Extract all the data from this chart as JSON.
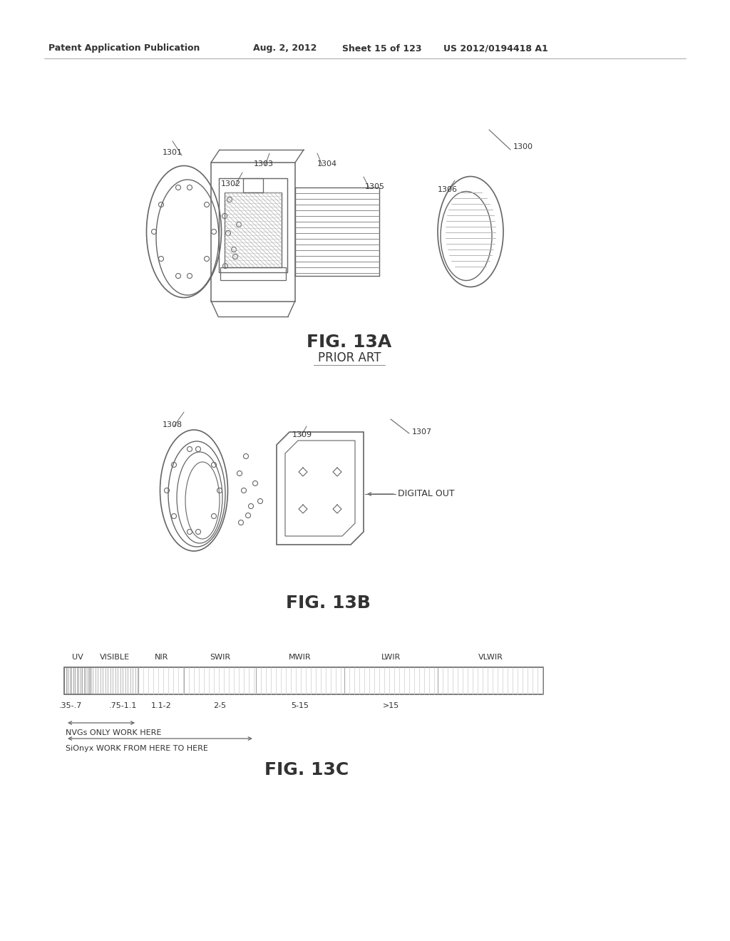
{
  "background_color": "#ffffff",
  "header_text": "Patent Application Publication",
  "header_date": "Aug. 2, 2012",
  "header_sheet": "Sheet 15 of 123",
  "header_patent": "US 2012/0194418 A1",
  "fig13a_label": "FIG. 13A",
  "fig13a_sub": "PRIOR ART",
  "fig13b_label": "FIG. 13B",
  "fig13c_label": "FIG. 13C",
  "ref_1300": "1300",
  "ref_1301": "1301",
  "ref_1302": "1302",
  "ref_1303": "1303",
  "ref_1304": "1304",
  "ref_1305": "1305",
  "ref_1306": "1306",
  "ref_1307": "1307",
  "ref_1308": "1308",
  "ref_1309": "1309",
  "digital_out": "DIGITAL OUT",
  "spectrum_labels": [
    "UV",
    "VISIBLE",
    "NIR",
    "SWIR",
    "MWIR",
    "LWIR",
    "VLWIR"
  ],
  "spectrum_values": [
    ".35-.7",
    ".75-1.1",
    "1.1-2",
    "2-5",
    "5-15",
    ">15"
  ],
  "nvg_text": "NVGs ONLY WORK HERE",
  "sionyx_text": "SiOnyx WORK FROM HERE TO HERE",
  "line_color": "#666666",
  "text_color": "#333333"
}
